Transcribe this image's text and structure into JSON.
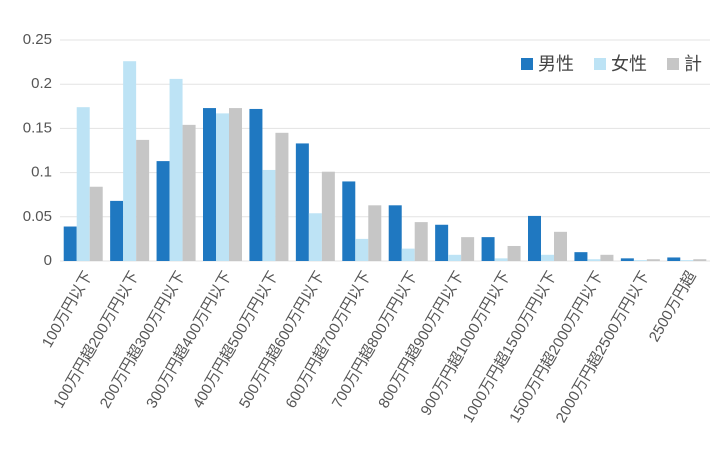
{
  "chart_data": {
    "type": "bar",
    "categories": [
      "100万円以下",
      "100万円超200万円以下",
      "200万円超300万円以下",
      "300万円超400万円以下",
      "400万円超500万円以下",
      "500万円超600万円以下",
      "600万円超700万円以下",
      "700万円超800万円以下",
      "800万円超900万円以下",
      "900万円超1000万円以下",
      "1000万円超1500万円以下",
      "1500万円超2000万円以下",
      "2000万円超2500万円以下",
      "2500万円超"
    ],
    "series": [
      {
        "name": "男性",
        "color": "#1f78c1",
        "values": [
          0.039,
          0.068,
          0.113,
          0.173,
          0.172,
          0.133,
          0.09,
          0.063,
          0.041,
          0.027,
          0.051,
          0.01,
          0.003,
          0.004
        ]
      },
      {
        "name": "女性",
        "color": "#bde3f5",
        "values": [
          0.174,
          0.226,
          0.206,
          0.167,
          0.103,
          0.054,
          0.025,
          0.014,
          0.007,
          0.003,
          0.007,
          0.002,
          0.001,
          0.001
        ]
      },
      {
        "name": "計",
        "color": "#c6c6c6",
        "values": [
          0.084,
          0.137,
          0.154,
          0.173,
          0.145,
          0.101,
          0.063,
          0.044,
          0.027,
          0.017,
          0.033,
          0.007,
          0.002,
          0.002
        ]
      }
    ],
    "ylim": [
      0,
      0.25
    ],
    "yticks": [
      0,
      0.05,
      0.1,
      0.15,
      0.2,
      0.25
    ],
    "grid": true,
    "legend": "top-right"
  }
}
